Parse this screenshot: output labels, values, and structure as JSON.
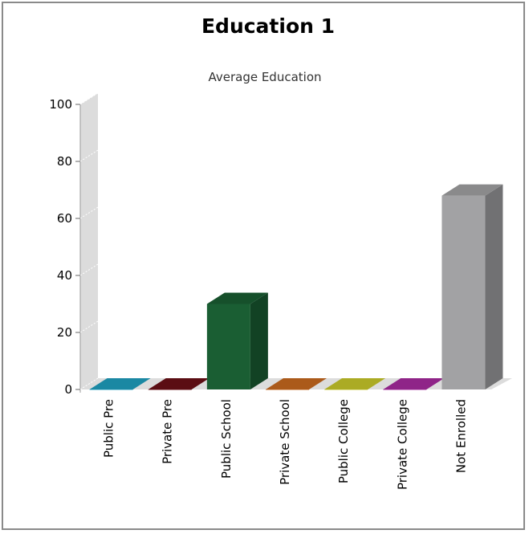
{
  "chart_data": {
    "type": "bar",
    "title": "Education 1",
    "subtitle": "Average Education",
    "xlabel": "",
    "ylabel": "",
    "ylim": [
      0,
      100
    ],
    "yticks": [
      0,
      20,
      40,
      60,
      80,
      100
    ],
    "grid": false,
    "legend": "none",
    "three_d": true,
    "categories": [
      "Public Pre",
      "Private Pre",
      "Public School",
      "Private School",
      "Public College",
      "Private College",
      "Not Enrolled"
    ],
    "values": [
      0,
      0,
      30,
      0,
      0,
      0,
      68
    ],
    "colors": [
      "#1fa0c0",
      "#6b0f16",
      "#1a5e33",
      "#c96a1e",
      "#c9c92a",
      "#a82aa0",
      "#a2a2a4"
    ]
  }
}
